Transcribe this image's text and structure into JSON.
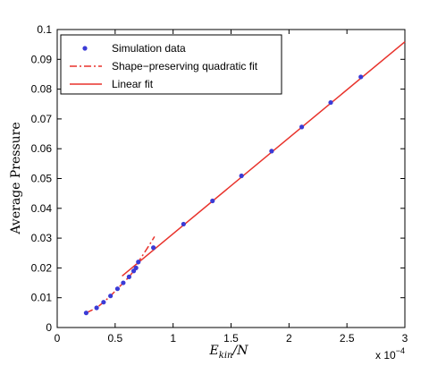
{
  "chart_data": {
    "type": "line",
    "xlabel_main": "E",
    "xlabel_sub": "kin",
    "xlabel_tail": "/N",
    "ylabel": "Average Pressure",
    "x_multiplier": "x 10",
    "x_multiplier_exp": "−4",
    "xlim": [
      0,
      3
    ],
    "ylim": [
      0,
      0.1
    ],
    "x_ticks": [
      "0",
      "0.5",
      "1",
      "1.5",
      "2",
      "2.5",
      "3"
    ],
    "y_ticks": [
      "0",
      "0.01",
      "0.02",
      "0.03",
      "0.04",
      "0.05",
      "0.06",
      "0.07",
      "0.08",
      "0.09",
      "0.1"
    ],
    "grid": false,
    "legend_position": "top-left",
    "legend": [
      "Simulation data",
      "Shape−preserving quadratic fit",
      "Linear fit"
    ],
    "colors": {
      "points": "#3b3bd6",
      "fit": "#e8322b"
    },
    "series": [
      {
        "name": "Simulation data",
        "kind": "scatter",
        "x": [
          0.25,
          0.34,
          0.4,
          0.46,
          0.52,
          0.57,
          0.62,
          0.66,
          0.68,
          0.7,
          0.83,
          1.09,
          1.34,
          1.59,
          1.85,
          2.11,
          2.36,
          2.62
        ],
        "y": [
          0.0049,
          0.0066,
          0.0085,
          0.0106,
          0.013,
          0.015,
          0.017,
          0.019,
          0.02,
          0.022,
          0.0268,
          0.0347,
          0.0425,
          0.0509,
          0.0592,
          0.0673,
          0.0755,
          0.0841
        ]
      },
      {
        "name": "Shape−preserving quadratic fit",
        "kind": "dashdot",
        "x": [
          0.25,
          0.34,
          0.4,
          0.46,
          0.52,
          0.57,
          0.62,
          0.66,
          0.68,
          0.7,
          0.75,
          0.8,
          0.84
        ],
        "y": [
          0.0049,
          0.0066,
          0.0085,
          0.0106,
          0.013,
          0.015,
          0.017,
          0.019,
          0.02,
          0.022,
          0.025,
          0.028,
          0.0305
        ]
      },
      {
        "name": "Linear fit",
        "kind": "solid",
        "x": [
          0.56,
          3.0
        ],
        "y": [
          0.0173,
          0.0959
        ]
      }
    ]
  }
}
